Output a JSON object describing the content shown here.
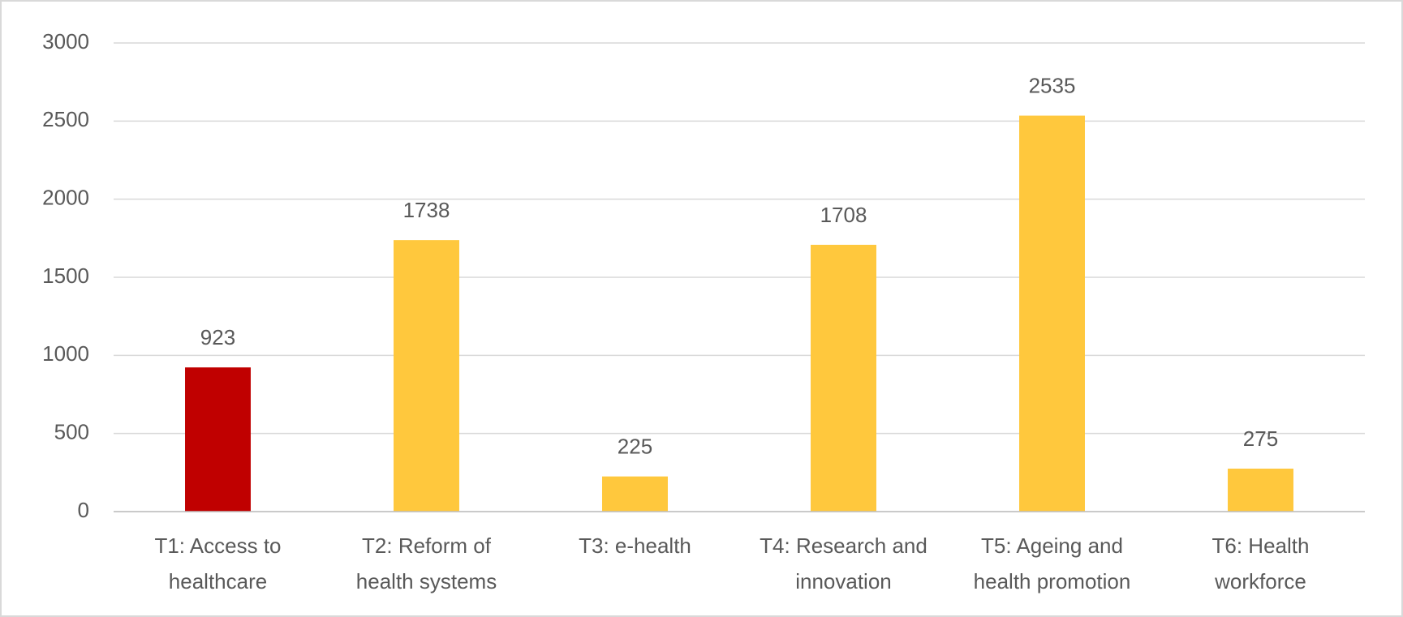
{
  "chart_data": {
    "type": "bar",
    "categories": [
      "T1: Access to healthcare",
      "T2: Reform of health systems",
      "T3: e-health",
      "T4: Research and innovation",
      "T5: Ageing and health promotion",
      "T6: Health workforce"
    ],
    "values": [
      923,
      1738,
      225,
      1708,
      2535,
      275
    ],
    "colors": [
      "#c00000",
      "#ffc83d",
      "#ffc83d",
      "#ffc83d",
      "#ffc83d",
      "#ffc83d"
    ],
    "ylim": [
      0,
      3000
    ],
    "yticks": [
      0,
      500,
      1000,
      1500,
      2000,
      2500,
      3000
    ],
    "grid": true
  }
}
